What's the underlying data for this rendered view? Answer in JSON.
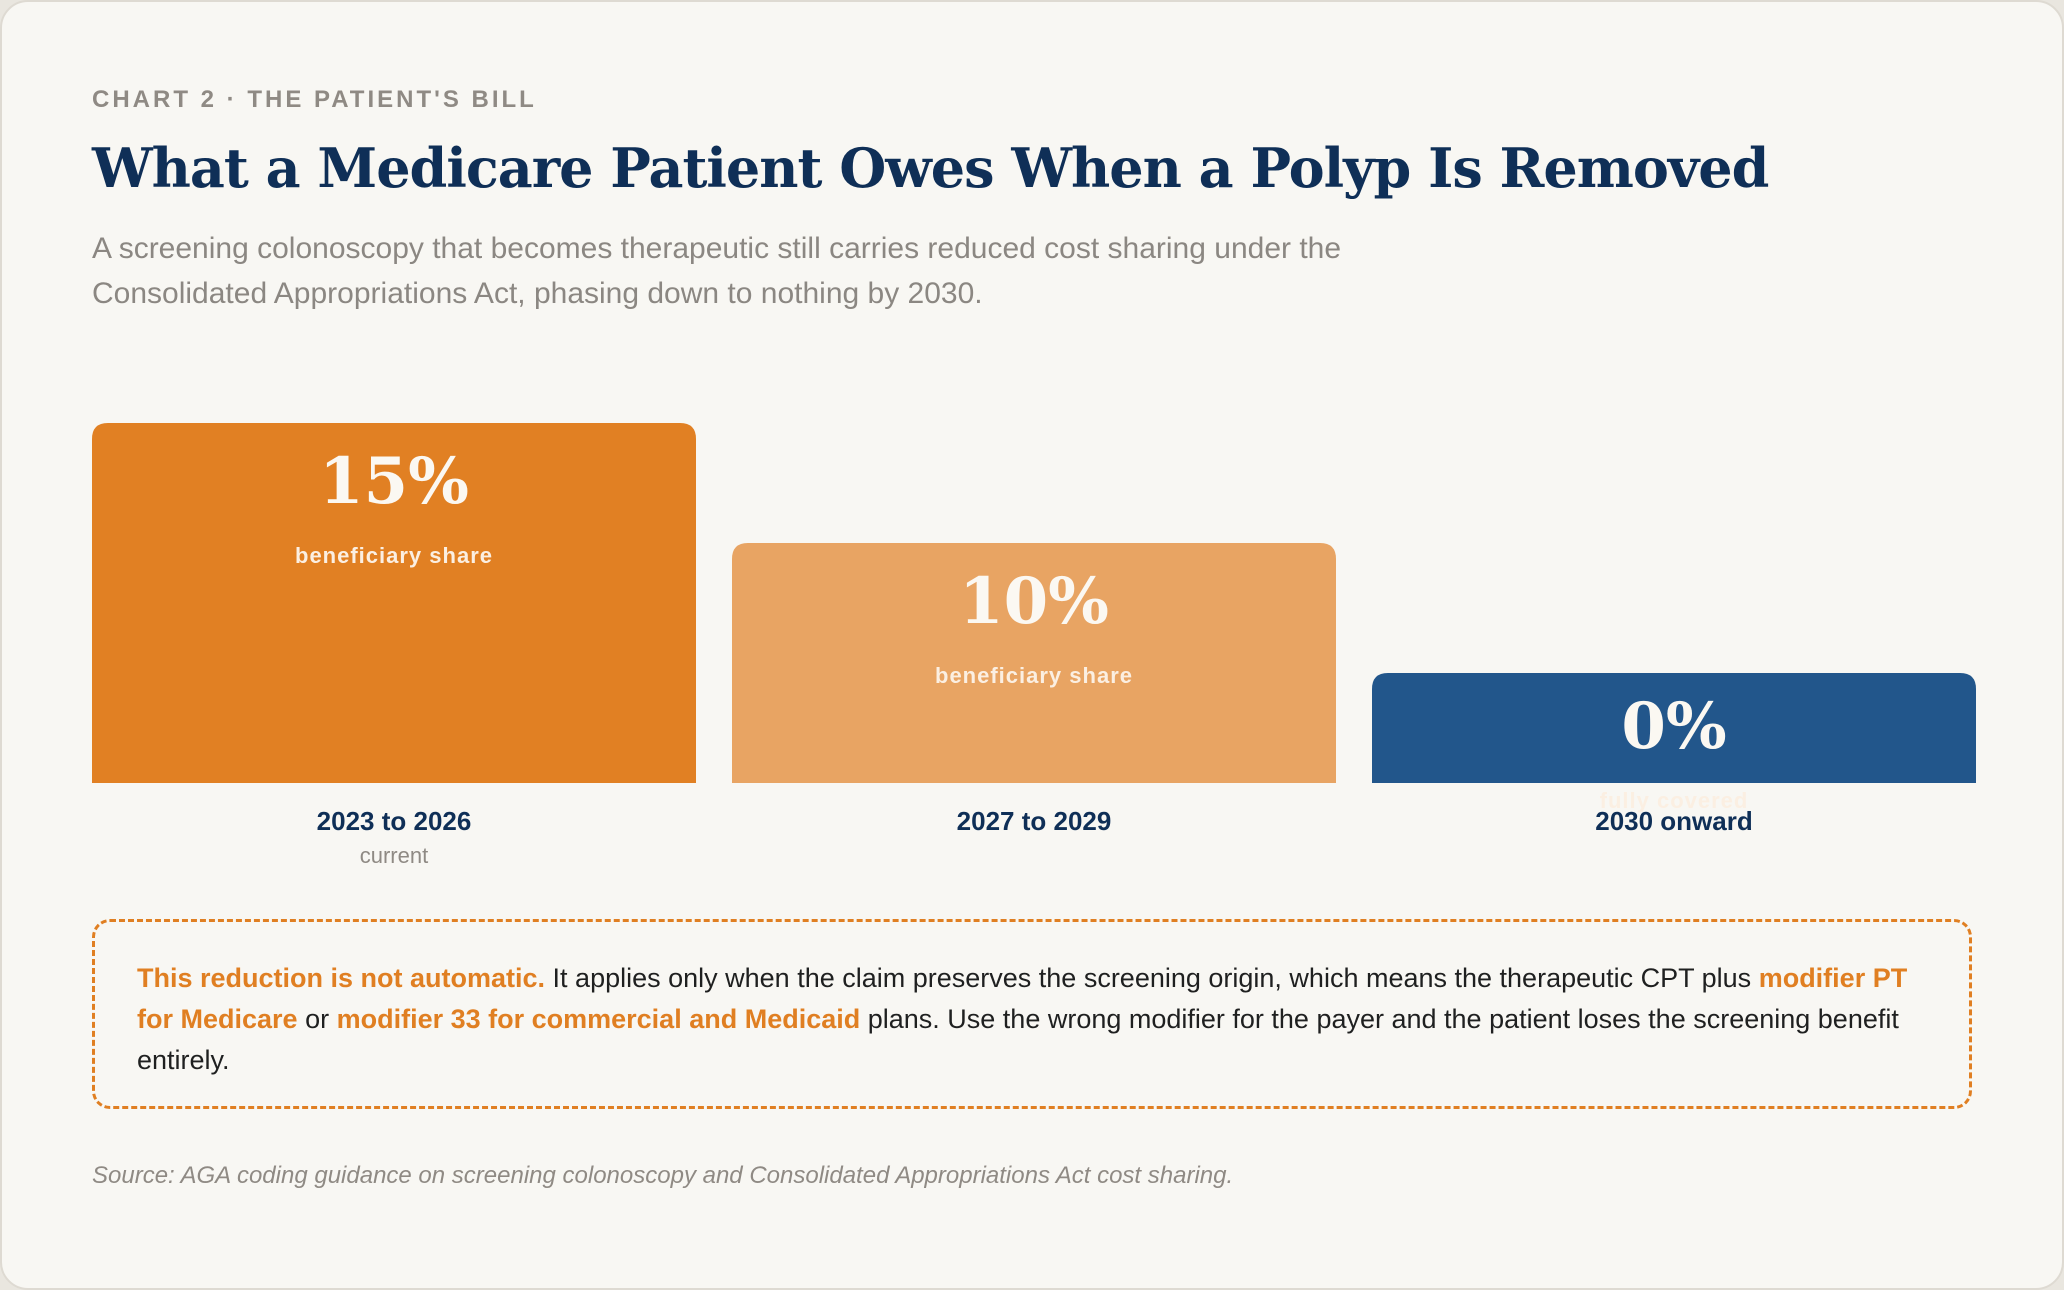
{
  "header": {
    "eyebrow": "CHART 2 · THE PATIENT'S BILL",
    "title": "What a Medicare Patient Owes When a Polyp Is Removed",
    "subtitle": "A screening colonoscopy that becomes therapeutic still carries reduced cost sharing under the Consolidated Appropriations Act, phasing down to nothing by 2030."
  },
  "chart_data": {
    "type": "bar",
    "categories": [
      "2023 to 2026",
      "2027 to 2029",
      "2030 onward"
    ],
    "category_notes": [
      "current",
      "",
      ""
    ],
    "values": [
      15,
      10,
      0
    ],
    "value_labels": [
      "15%",
      "10%",
      "0%"
    ],
    "bar_captions": [
      "beneficiary share",
      "beneficiary share",
      "fully covered"
    ],
    "bar_colors": [
      "#e18023",
      "#e8a463",
      "#22568b"
    ],
    "unit": "%",
    "title": "What a Medicare Patient Owes When a Polyp Is Removed",
    "xlabel": "",
    "ylabel": "",
    "grid": false,
    "legend": "none"
  },
  "callout": {
    "lead": "This reduction is not automatic.",
    "text1": " It applies only when the claim preserves the screening origin, which means the therapeutic CPT plus ",
    "mod_medicare": "modifier PT for Medicare",
    "text2": " or ",
    "mod_commercial": "modifier 33 for commercial and Medicaid",
    "text3": " plans. Use the wrong modifier for the payer and the patient loses the screening benefit entirely."
  },
  "source": "Source: AGA coding guidance on screening colonoscopy and Consolidated Appropriations Act cost sharing.",
  "colors": {
    "accent_orange": "#e07f22",
    "light_orange": "#e8a463",
    "navy": "#0f2f57",
    "blue": "#22568b"
  }
}
